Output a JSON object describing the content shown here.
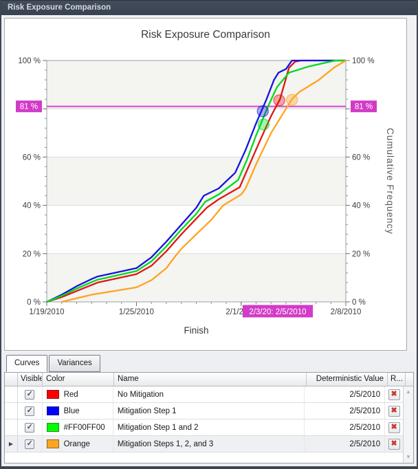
{
  "window": {
    "title": "Risk Exposure Comparison"
  },
  "icons": {
    "delete": "✖",
    "row_selector": "▶",
    "scroll_up": "▲",
    "scroll_down": "▼",
    "check": "✓"
  },
  "chart_data": {
    "type": "line",
    "title": "Risk Exposure Comparison",
    "xlabel": "Finish",
    "ylabel_right": "Cumulative Frequency",
    "x_unit": "date",
    "x_range_days": [
      0,
      20
    ],
    "x_start_date": "1/19/2010",
    "x_tick_labels": [
      {
        "day": 0,
        "label": "1/19/2010"
      },
      {
        "day": 6,
        "label": "1/25/2010"
      },
      {
        "day": 13,
        "label": "2/1/2010"
      },
      {
        "day": 20,
        "label": "2/8/2010"
      }
    ],
    "x_minor_tick_step_days": 1,
    "ylim": [
      0,
      100
    ],
    "y_tick_step": 20,
    "y_minor_tick_step": 4,
    "y_tick_suffix": " %",
    "y_labeled_ticks": [
      0,
      20,
      40,
      60,
      100
    ],
    "bands_pct": [
      [
        0,
        20
      ],
      [
        40,
        60
      ],
      [
        80,
        100
      ]
    ],
    "band_color": "#f4f4f1",
    "grid_color": "#dcdcdc",
    "threshold": {
      "value": 81,
      "label": "81 %",
      "color": "#d23bc7",
      "x_axis_badge": "2/3/20: 2/5/2010",
      "x_axis_badge_span_days": [
        13.1,
        17.8
      ]
    },
    "series": [
      {
        "name": "No Mitigation",
        "color": "#e11414",
        "points": [
          [
            0,
            0
          ],
          [
            1,
            2
          ],
          [
            2,
            4.5
          ],
          [
            3,
            7
          ],
          [
            3.4,
            8
          ],
          [
            6,
            11.5
          ],
          [
            7,
            15
          ],
          [
            8,
            21
          ],
          [
            9,
            28
          ],
          [
            10,
            34.5
          ],
          [
            10.7,
            39
          ],
          [
            11.5,
            42.5
          ],
          [
            12.9,
            47.5
          ],
          [
            13.5,
            56
          ],
          [
            14.2,
            66
          ],
          [
            15,
            77
          ],
          [
            15.6,
            84
          ],
          [
            16.2,
            97
          ],
          [
            16.6,
            99.5
          ],
          [
            17,
            100
          ],
          [
            20,
            100
          ]
        ]
      },
      {
        "name": "Mitigation Step 1",
        "color": "#1414dc",
        "points": [
          [
            0,
            0
          ],
          [
            1,
            3
          ],
          [
            2,
            6.5
          ],
          [
            3,
            9.5
          ],
          [
            3.4,
            10.5
          ],
          [
            6,
            14
          ],
          [
            7,
            18.5
          ],
          [
            8,
            25
          ],
          [
            9,
            32
          ],
          [
            10,
            39
          ],
          [
            10.5,
            44
          ],
          [
            11.5,
            47
          ],
          [
            12.6,
            53.5
          ],
          [
            13.3,
            63
          ],
          [
            14,
            74
          ],
          [
            14.7,
            84
          ],
          [
            15.2,
            92
          ],
          [
            15.5,
            95
          ],
          [
            16,
            96.5
          ],
          [
            16.4,
            100
          ],
          [
            20,
            100
          ]
        ]
      },
      {
        "name": "Mitigation Step 1 and 2",
        "color": "#00d91e",
        "points": [
          [
            0,
            0
          ],
          [
            1,
            2.5
          ],
          [
            2,
            5.5
          ],
          [
            3,
            8.2
          ],
          [
            3.4,
            9.2
          ],
          [
            6,
            12.8
          ],
          [
            7,
            16.8
          ],
          [
            8,
            23
          ],
          [
            9,
            30
          ],
          [
            10,
            36.5
          ],
          [
            10.6,
            41.5
          ],
          [
            11.5,
            44.5
          ],
          [
            12.8,
            50.5
          ],
          [
            13.4,
            59
          ],
          [
            14,
            69
          ],
          [
            14.8,
            81
          ],
          [
            15.4,
            89
          ],
          [
            16.2,
            95
          ],
          [
            17.5,
            97.5
          ],
          [
            19.3,
            100
          ],
          [
            20,
            100
          ]
        ]
      },
      {
        "name": "Mitigation Steps 1, 2, and 3",
        "color": "#ffa21f",
        "points": [
          [
            1,
            0
          ],
          [
            2,
            1.5
          ],
          [
            3,
            3
          ],
          [
            3.5,
            3.5
          ],
          [
            6,
            6
          ],
          [
            7,
            9
          ],
          [
            8,
            14
          ],
          [
            8.6,
            19
          ],
          [
            9,
            22
          ],
          [
            10,
            28
          ],
          [
            11,
            34
          ],
          [
            11.8,
            40
          ],
          [
            13,
            44.5
          ],
          [
            13.3,
            47
          ],
          [
            14,
            57
          ],
          [
            15,
            70
          ],
          [
            16,
            80
          ],
          [
            16.4,
            84
          ],
          [
            16.9,
            87
          ],
          [
            18.2,
            92
          ],
          [
            19.2,
            97
          ],
          [
            20,
            100
          ]
        ]
      }
    ],
    "markers": [
      {
        "series": "Mitigation Step 1",
        "day": 14.45,
        "pct": 79
      },
      {
        "series": "Mitigation Step 1 and 2",
        "day": 14.5,
        "pct": 73.5
      },
      {
        "series": "No Mitigation",
        "day": 15.55,
        "pct": 83.5
      },
      {
        "series": "Mitigation Steps 1, 2, and 3",
        "day": 16.4,
        "pct": 83.7
      }
    ],
    "legend_position": "none",
    "grid_on": true
  },
  "tabs": [
    {
      "label": "Curves",
      "active": true
    },
    {
      "label": "Variances",
      "active": false
    }
  ],
  "table": {
    "columns": [
      "Visible",
      "Color",
      "Name",
      "Deterministic Value",
      "R..."
    ],
    "rows": [
      {
        "visible": true,
        "color_hex": "#ff0000",
        "color_label": "Red",
        "name": "No Mitigation",
        "deterministic_value": "2/5/2010",
        "selected": false
      },
      {
        "visible": true,
        "color_hex": "#0000ff",
        "color_label": "Blue",
        "name": "Mitigation Step 1",
        "deterministic_value": "2/5/2010",
        "selected": false
      },
      {
        "visible": true,
        "color_hex": "#00ff00",
        "color_label": "#FF00FF00",
        "name": "Mitigation Step 1 and 2",
        "deterministic_value": "2/5/2010",
        "selected": false
      },
      {
        "visible": true,
        "color_hex": "#ffa520",
        "color_label": "Orange",
        "name": "Mitigation Steps 1, 2, and 3",
        "deterministic_value": "2/5/2010",
        "selected": true
      }
    ]
  }
}
